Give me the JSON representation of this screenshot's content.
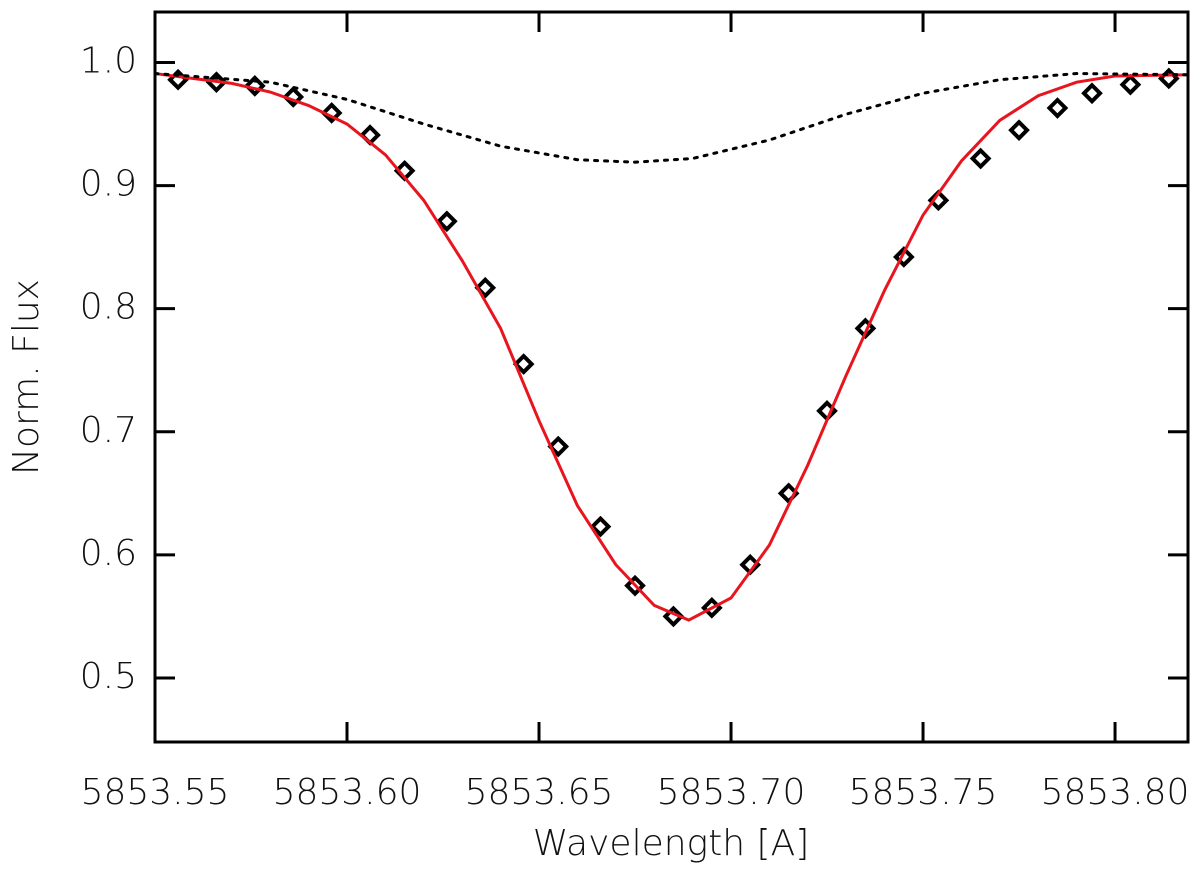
{
  "chart_data": {
    "type": "line",
    "x_label": "Wavelength [A]",
    "y_label": "Norm. Flux",
    "xlim": [
      5853.55,
      5853.819
    ],
    "ylim": [
      0.448,
      1.041
    ],
    "xticks": [
      5853.55,
      {
        "value": 5853.6,
        "label": "5853.60"
      },
      5853.65,
      {
        "value": 5853.7,
        "label": "5853.70"
      },
      5853.75,
      {
        "value": 5853.8,
        "label": "5853.80"
      }
    ],
    "yticks": [
      0.5,
      0.6,
      0.7,
      0.8,
      0.9,
      {
        "value": 1,
        "label": "1.0"
      }
    ],
    "grid": false,
    "series": [
      {
        "style": "markers",
        "color": "#000000",
        "x": [
          5853.556,
          5853.566,
          5853.576,
          5853.586,
          5853.596,
          5853.606,
          5853.615,
          5853.626,
          5853.636,
          5853.646,
          5853.655,
          5853.666,
          5853.675,
          5853.685,
          5853.695,
          5853.705,
          5853.715,
          5853.725,
          5853.735,
          5853.745,
          5853.754,
          5853.765,
          5853.775,
          5853.785,
          5853.794,
          5853.804,
          5853.814
        ],
        "values": [
          0.986,
          0.984,
          0.981,
          0.972,
          0.959,
          0.941,
          0.912,
          0.871,
          0.817,
          0.755,
          0.688,
          0.623,
          0.575,
          0.55,
          0.557,
          0.592,
          0.65,
          0.717,
          0.784,
          0.842,
          0.888,
          0.922,
          0.945,
          0.963,
          0.975,
          0.982,
          0.987
        ]
      },
      {
        "style": "solid",
        "color": "#e8141e",
        "x": [
          5853.55,
          5853.56,
          5853.57,
          5853.58,
          5853.59,
          5853.6,
          5853.61,
          5853.62,
          5853.63,
          5853.64,
          5853.65,
          5853.66,
          5853.67,
          5853.68,
          5853.689,
          5853.7,
          5853.71,
          5853.72,
          5853.73,
          5853.74,
          5853.75,
          5853.76,
          5853.77,
          5853.78,
          5853.79,
          5853.8,
          5853.819
        ],
        "values": [
          0.991,
          0.987,
          0.983,
          0.976,
          0.965,
          0.95,
          0.925,
          0.888,
          0.839,
          0.784,
          0.709,
          0.64,
          0.592,
          0.559,
          0.547,
          0.565,
          0.608,
          0.673,
          0.746,
          0.815,
          0.876,
          0.92,
          0.953,
          0.973,
          0.984,
          0.989,
          0.99
        ]
      },
      {
        "style": "dotted",
        "color": "#000000",
        "x": [
          5853.55,
          5853.58,
          5853.6,
          5853.62,
          5853.64,
          5853.66,
          5853.675,
          5853.69,
          5853.71,
          5853.73,
          5853.75,
          5853.77,
          5853.79,
          5853.819
        ],
        "values": [
          0.991,
          0.984,
          0.97,
          0.95,
          0.932,
          0.921,
          0.919,
          0.922,
          0.937,
          0.958,
          0.975,
          0.986,
          0.991,
          0.99
        ]
      }
    ]
  }
}
